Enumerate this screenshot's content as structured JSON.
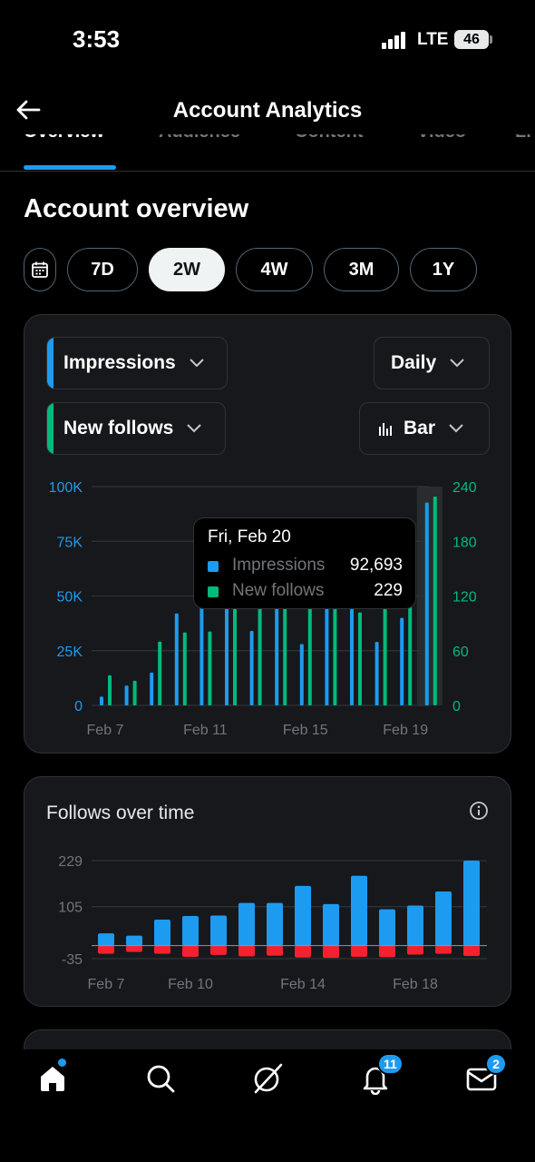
{
  "status": {
    "time": "3:53",
    "network": "LTE",
    "battery": "46"
  },
  "header": {
    "title": "Account Analytics"
  },
  "tabs": [
    {
      "label": "Overview",
      "active": true
    },
    {
      "label": "Audience",
      "active": false
    },
    {
      "label": "Content",
      "active": false
    },
    {
      "label": "Video",
      "active": false
    },
    {
      "label": "Li",
      "active": false
    }
  ],
  "section_title": "Account overview",
  "ranges": [
    "7D",
    "2W",
    "4W",
    "3M",
    "1Y"
  ],
  "selected_range": "2W",
  "controls": {
    "metric1": "Impressions",
    "metric2": "New follows",
    "granularity": "Daily",
    "chart_type": "Bar",
    "metric1_color": "#1d9bf0",
    "metric2_color": "#00ba7c"
  },
  "tooltip": {
    "date": "Fri, Feb 20",
    "rows": [
      {
        "label": "Impressions",
        "value": "92,693",
        "color": "#1d9bf0"
      },
      {
        "label": "New follows",
        "value": "229",
        "color": "#00ba7c"
      }
    ]
  },
  "follows_card": {
    "title": "Follows over time"
  },
  "chart_data": [
    {
      "type": "bar",
      "x": [
        "Feb 7",
        "Feb 8",
        "Feb 9",
        "Feb 10",
        "Feb 11",
        "Feb 12",
        "Feb 13",
        "Feb 14",
        "Feb 15",
        "Feb 16",
        "Feb 17",
        "Feb 18",
        "Feb 19",
        "Feb 20"
      ],
      "xticks": [
        "Feb 7",
        "Feb 11",
        "Feb 15",
        "Feb 19"
      ],
      "y_left_ticks": [
        "100K",
        "75K",
        "50K",
        "25K",
        "0"
      ],
      "y_right_ticks": [
        "240",
        "180",
        "120",
        "60",
        "0"
      ],
      "ylim_left": [
        0,
        100000
      ],
      "ylim_right": [
        0,
        240
      ],
      "highlighted": "Feb 20",
      "series": [
        {
          "name": "Impressions",
          "axis": "left",
          "color": "#1d9bf0",
          "values": [
            4000,
            9000,
            15000,
            42000,
            48000,
            48000,
            34000,
            48000,
            28000,
            48000,
            48000,
            29000,
            40000,
            92693
          ]
        },
        {
          "name": "New follows",
          "axis": "right",
          "color": "#00ba7c",
          "values": [
            33,
            27,
            70,
            80,
            81,
            115,
            115,
            115,
            115,
            115,
            102,
            120,
            120,
            229
          ]
        }
      ]
    },
    {
      "type": "bar",
      "x": [
        "Feb 7",
        "Feb 8",
        "Feb 9",
        "Feb 10",
        "Feb 11",
        "Feb 12",
        "Feb 13",
        "Feb 14",
        "Feb 15",
        "Feb 16",
        "Feb 17",
        "Feb 18",
        "Feb 19",
        "Feb 20"
      ],
      "xticks": [
        "Feb 7",
        "Feb 10",
        "Feb 14",
        "Feb 18"
      ],
      "y_ticks": [
        "229",
        "105",
        "-35"
      ],
      "ylim": [
        -35,
        229
      ],
      "series": [
        {
          "name": "Gained",
          "color": "#1d9bf0",
          "values": [
            33,
            27,
            70,
            80,
            81,
            115,
            115,
            161,
            112,
            188,
            98,
            108,
            146,
            229
          ]
        },
        {
          "name": "Lost",
          "color": "#f4212e",
          "values": [
            -22,
            -17,
            -22,
            -30,
            -25,
            -29,
            -27,
            -32,
            -33,
            -30,
            -31,
            -24,
            -22,
            -28
          ]
        }
      ]
    }
  ],
  "bottom_nav": {
    "notifications_badge": "11",
    "messages_badge": "2",
    "icons": [
      "home-icon",
      "search-icon",
      "grok-icon",
      "bell-icon",
      "mail-icon"
    ]
  }
}
